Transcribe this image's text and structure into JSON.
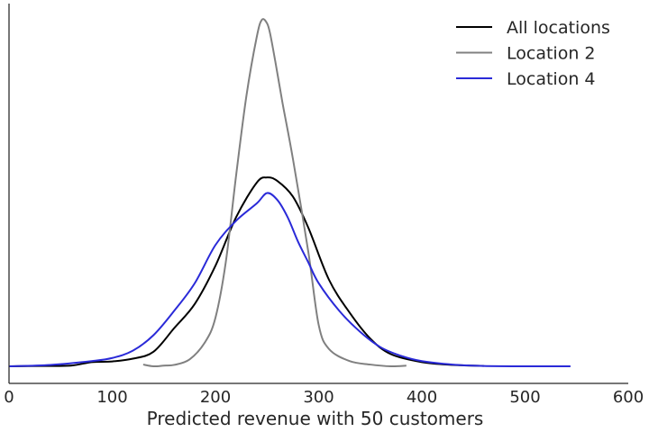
{
  "chart_data": {
    "type": "line",
    "title": "",
    "xlabel": "Predicted revenue with 50 customers",
    "ylabel": "",
    "xlim": [
      0,
      600
    ],
    "ylim": [
      0,
      1.0
    ],
    "xticks": [
      "0",
      "100",
      "200",
      "300",
      "400",
      "500",
      "600"
    ],
    "xtick_values": [
      0,
      100,
      200,
      300,
      400,
      500,
      600
    ],
    "y_axis_ticks_shown": false,
    "grid": false,
    "legend_position": "top-right",
    "series": [
      {
        "name": "All locations",
        "color": "#000000",
        "x": [
          0,
          30,
          60,
          80,
          100,
          120,
          140,
          160,
          180,
          200,
          220,
          240,
          250,
          260,
          275,
          290,
          310,
          330,
          350,
          370,
          400,
          430,
          460
        ],
        "y": [
          0.0,
          0.001,
          0.002,
          0.012,
          0.014,
          0.022,
          0.042,
          0.11,
          0.18,
          0.29,
          0.43,
          0.53,
          0.545,
          0.535,
          0.49,
          0.4,
          0.25,
          0.155,
          0.08,
          0.035,
          0.012,
          0.004,
          0.001
        ]
      },
      {
        "name": "Location 2",
        "color": "#808080",
        "x": [
          130,
          140,
          150,
          160,
          175,
          190,
          200,
          210,
          220,
          230,
          240,
          245,
          250,
          253,
          258,
          265,
          275,
          290,
          300,
          310,
          330,
          350,
          370,
          385
        ],
        "y": [
          0.005,
          0.0,
          0.002,
          0.004,
          0.02,
          0.07,
          0.14,
          0.3,
          0.55,
          0.78,
          0.95,
          1.0,
          0.99,
          0.96,
          0.88,
          0.76,
          0.6,
          0.33,
          0.12,
          0.05,
          0.015,
          0.005,
          0.0,
          0.002
        ]
      },
      {
        "name": "Location 4",
        "color": "#2a2ad8",
        "x": [
          0,
          40,
          80,
          100,
          120,
          140,
          160,
          180,
          200,
          220,
          240,
          250,
          260,
          270,
          280,
          290,
          300,
          320,
          340,
          360,
          380,
          400,
          430,
          460,
          500,
          544
        ],
        "y": [
          0.0,
          0.004,
          0.015,
          0.024,
          0.045,
          0.09,
          0.16,
          0.24,
          0.35,
          0.42,
          0.47,
          0.5,
          0.48,
          0.43,
          0.36,
          0.3,
          0.24,
          0.16,
          0.1,
          0.055,
          0.03,
          0.015,
          0.005,
          0.001,
          0.0,
          0.0
        ]
      }
    ]
  }
}
